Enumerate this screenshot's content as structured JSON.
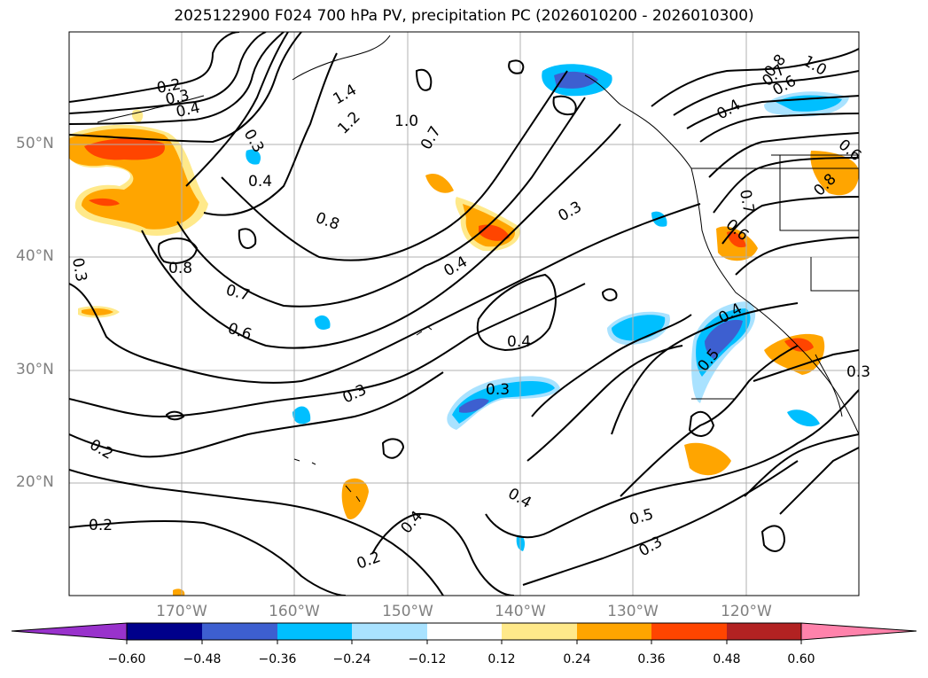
{
  "title": "2025122900 F024 700 hPa PV, precipitation PC (2026010200 - 2026010300)",
  "lat_labels": [
    {
      "text": "50°N",
      "lat": 50
    },
    {
      "text": "40°N",
      "lat": 40
    },
    {
      "text": "30°N",
      "lat": 30
    },
    {
      "text": "20°N",
      "lat": 20
    }
  ],
  "lon_labels": [
    {
      "text": "170°W",
      "lon": -170
    },
    {
      "text": "160°W",
      "lon": -160
    },
    {
      "text": "150°W",
      "lon": -150
    },
    {
      "text": "140°W",
      "lon": -140
    },
    {
      "text": "130°W",
      "lon": -130
    },
    {
      "text": "120°W",
      "lon": -120
    }
  ],
  "map_extent": {
    "lon_min": -180,
    "lon_max": -110,
    "lat_min": 10,
    "lat_max": 60
  },
  "colorbar": {
    "colors": [
      "#9932cc",
      "#00008b",
      "#3d5fd0",
      "#00bfff",
      "#a9e2ff",
      "#ffffff",
      "#ffe98a",
      "#ffa500",
      "#ff4500",
      "#b22222",
      "#ff82ab"
    ],
    "tick_labels": [
      "−0.60",
      "−0.48",
      "−0.36",
      "−0.24",
      "−0.12",
      "0.12",
      "0.24",
      "0.36",
      "0.48",
      "0.60"
    ]
  },
  "contour_labels": [
    "0.2",
    "0.3",
    "0.4",
    "1.4",
    "1.2",
    "1.0",
    "0.7",
    "0.3",
    "0.4",
    "0.8",
    "0.8",
    "0.7",
    "0.6",
    "0.3",
    "0.4",
    "0.3",
    "0.4",
    "0.3",
    "0.3",
    "0.2",
    "0.2",
    "0.2",
    "0.4",
    "0.4",
    "0.5",
    "0.3",
    "0.5",
    "0.4",
    "0.4",
    "0.8",
    "0.7",
    "0.6",
    "1.0",
    "0.8",
    "0.7",
    "0.6",
    "0.6",
    "0.3"
  ]
}
